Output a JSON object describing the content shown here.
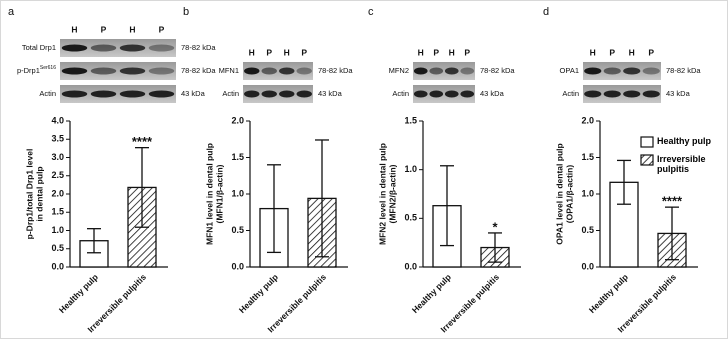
{
  "chart_data": [
    {
      "type": "bar",
      "panel": "a",
      "blot": {
        "lanes": [
          "H",
          "P",
          "H",
          "P"
        ],
        "rows": [
          {
            "label": "Total Drp1",
            "superscript": null,
            "size": "78-82 kDa"
          },
          {
            "label": "p-Drp1",
            "superscript": "Ser616",
            "size": "78-82 kDa"
          },
          {
            "label": "Actin",
            "superscript": null,
            "size": "43 kDa"
          }
        ]
      },
      "ylabel": [
        "p-Drp1/total Drp1 level",
        "in dental pulp"
      ],
      "categories": [
        "Healthy pulp",
        "Irreversible pulpitis"
      ],
      "values": [
        0.72,
        2.18
      ],
      "errors": [
        0.33,
        1.09
      ],
      "significance": [
        null,
        "****"
      ],
      "bar_styles": [
        "solid",
        "hatched"
      ],
      "color": "#ffffff",
      "ylim": [
        0,
        4
      ],
      "yticks": [
        {
          "value": 0,
          "label": "0.0"
        },
        0.5,
        {
          "value": 1,
          "label": "1.0"
        },
        1.5,
        {
          "value": 2,
          "label": "2.0"
        },
        2.5,
        {
          "value": 3,
          "label": "3.0"
        },
        3.5,
        {
          "value": 4,
          "label": "4.0"
        }
      ]
    },
    {
      "type": "bar",
      "panel": "b",
      "blot": {
        "lanes": [
          "H",
          "P",
          "H",
          "P"
        ],
        "rows": [
          {
            "label": "MFN1",
            "superscript": null,
            "size": "78-82 kDa"
          },
          {
            "label": "Actin",
            "superscript": null,
            "size": "43 kDa"
          }
        ]
      },
      "ylabel": [
        "MFN1 level in dental pulp",
        "(MFN1/β-actin)"
      ],
      "categories": [
        "Healthy pulp",
        "Irreversible pulpitis"
      ],
      "values": [
        0.8,
        0.94
      ],
      "errors": [
        0.6,
        0.8
      ],
      "significance": [
        null,
        null
      ],
      "bar_styles": [
        "solid",
        "hatched"
      ],
      "color": "#ffffff",
      "ylim": [
        0,
        2
      ],
      "yticks": [
        {
          "value": 0,
          "label": "0.0"
        },
        0.5,
        {
          "value": 1,
          "label": "1.0"
        },
        1.5,
        {
          "value": 2,
          "label": "2.0"
        }
      ]
    },
    {
      "type": "bar",
      "panel": "c",
      "blot": {
        "lanes": [
          "H",
          "P",
          "H",
          "P"
        ],
        "rows": [
          {
            "label": "MFN2",
            "superscript": null,
            "size": "78-82 kDa"
          },
          {
            "label": "Actin",
            "superscript": null,
            "size": "43 kDa"
          }
        ]
      },
      "ylabel": [
        "MFN2 level in dental pulp",
        "(MFN2/β-actin)"
      ],
      "categories": [
        "Healthy pulp",
        "Irreversible pulpitis"
      ],
      "values": [
        0.63,
        0.2
      ],
      "errors": [
        0.41,
        0.15
      ],
      "significance": [
        null,
        "*"
      ],
      "bar_styles": [
        "solid",
        "hatched"
      ],
      "color": "#ffffff",
      "ylim": [
        0,
        1.5
      ],
      "yticks": [
        {
          "value": 0,
          "label": "0.0"
        },
        0.5,
        {
          "value": 1,
          "label": "1.0"
        },
        1.5
      ]
    },
    {
      "type": "bar",
      "panel": "d",
      "blot": {
        "lanes": [
          "H",
          "P",
          "H",
          "P"
        ],
        "rows": [
          {
            "label": "OPA1",
            "superscript": null,
            "size": "78-82 kDa"
          },
          {
            "label": "Actin",
            "superscript": null,
            "size": "43 kDa"
          }
        ]
      },
      "ylabel": [
        "OPA1 level in dental pulp",
        "(OPA1/β-actin)"
      ],
      "categories": [
        "Healthy pulp",
        "Irreversible pulpitis"
      ],
      "values": [
        1.16,
        0.46
      ],
      "errors": [
        0.3,
        0.36
      ],
      "significance": [
        null,
        "****"
      ],
      "bar_styles": [
        "solid",
        "hatched"
      ],
      "color": "#ffffff",
      "ylim": [
        0,
        2
      ],
      "yticks": [
        {
          "value": 0,
          "label": "0.0"
        },
        0.5,
        {
          "value": 1,
          "label": "1.0"
        },
        1.5,
        {
          "value": 2,
          "label": "2.0"
        }
      ],
      "legend": {
        "entries": [
          "Healthy pulp",
          "Irreversible pulpitis"
        ],
        "position": "upper right"
      }
    }
  ]
}
